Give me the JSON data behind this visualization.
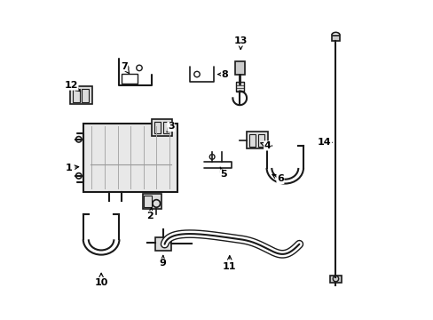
{
  "bg_color": "#ffffff",
  "line_color": "#1a1a1a",
  "text_color": "#000000",
  "figsize": [
    4.89,
    3.6
  ],
  "dpi": 100,
  "label_items": [
    [
      1,
      0.033,
      0.475,
      0.075,
      0.48
    ],
    [
      2,
      0.29,
      0.325,
      0.295,
      0.36
    ],
    [
      3,
      0.355,
      0.605,
      0.34,
      0.585
    ],
    [
      4,
      0.66,
      0.545,
      0.635,
      0.555
    ],
    [
      5,
      0.52,
      0.455,
      0.51,
      0.478
    ],
    [
      6,
      0.7,
      0.44,
      0.665,
      0.46
    ],
    [
      7,
      0.207,
      0.795,
      0.225,
      0.77
    ],
    [
      8,
      0.525,
      0.77,
      0.5,
      0.77
    ],
    [
      9,
      0.33,
      0.175,
      0.33,
      0.21
    ],
    [
      10,
      0.135,
      0.115,
      0.135,
      0.155
    ],
    [
      11,
      0.54,
      0.165,
      0.54,
      0.21
    ],
    [
      12,
      0.04,
      0.735,
      0.07,
      0.715
    ],
    [
      13,
      0.575,
      0.875,
      0.575,
      0.845
    ],
    [
      14,
      0.84,
      0.555,
      0.865,
      0.555
    ]
  ]
}
